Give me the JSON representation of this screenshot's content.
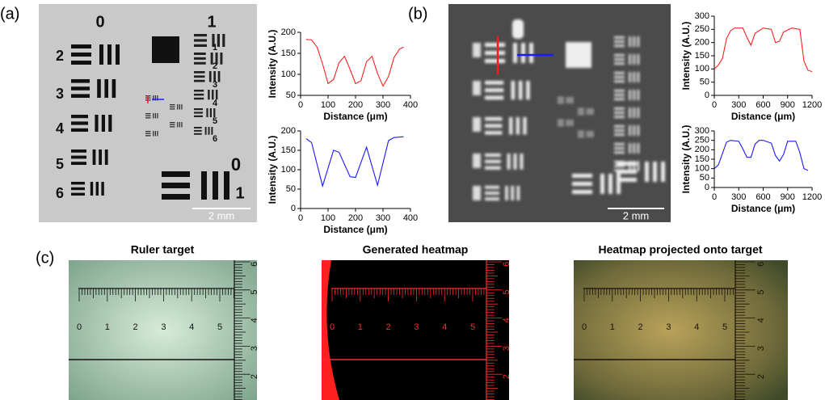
{
  "panel_labels": [
    "(a)",
    "(b)",
    "(c)"
  ],
  "scale_bar": "2 mm",
  "target_labels": [
    "0",
    "1",
    "2",
    "3",
    "4",
    "5",
    "6",
    "1",
    "2",
    "3",
    "4",
    "5",
    "6",
    "0",
    "1"
  ],
  "panel_c_titles": [
    "Ruler target",
    "Generated heatmap",
    "Heatmap projected onto target"
  ],
  "ruler": {
    "h_labels": [
      "0",
      "1",
      "2",
      "3",
      "4",
      "5"
    ],
    "v_labels": [
      "2",
      "3",
      "4",
      "5",
      "6"
    ]
  },
  "chart_data": [
    {
      "type": "line",
      "x_label": "Distance (μm)",
      "y_label": "Intensity (A.U.)",
      "x": [
        20,
        40,
        60,
        80,
        100,
        120,
        140,
        160,
        180,
        200,
        220,
        240,
        260,
        280,
        300,
        320,
        340,
        360,
        375
      ],
      "series": [
        {
          "color": "#ff2020",
          "values": [
            183,
            182,
            165,
            125,
            78,
            88,
            128,
            143,
            112,
            78,
            85,
            130,
            143,
            102,
            72,
            95,
            140,
            160,
            165
          ]
        }
      ],
      "xlim": [
        0,
        400
      ],
      "ylim": [
        50,
        200
      ],
      "xticks": [
        0,
        100,
        200,
        300,
        400
      ],
      "yticks": [
        50,
        100,
        150,
        200
      ]
    },
    {
      "type": "line",
      "x_label": "Distance (μm)",
      "y_label": "Intensity (A.U.)",
      "x": [
        20,
        40,
        80,
        120,
        140,
        180,
        200,
        240,
        280,
        320,
        340,
        375
      ],
      "series": [
        {
          "color": "#1a1aff",
          "values": [
            180,
            170,
            58,
            150,
            145,
            82,
            80,
            158,
            60,
            175,
            183,
            185
          ]
        }
      ],
      "xlim": [
        0,
        400
      ],
      "ylim": [
        0,
        200
      ],
      "xticks": [
        0,
        100,
        200,
        300,
        400
      ],
      "yticks": [
        0,
        50,
        100,
        150,
        200
      ]
    },
    {
      "type": "line",
      "x_label": "Distance (μm)",
      "y_label": "Intensity (A.U.)",
      "x": [
        0,
        50,
        100,
        150,
        200,
        250,
        350,
        400,
        450,
        500,
        600,
        700,
        750,
        800,
        850,
        950,
        1050,
        1100,
        1150,
        1200
      ],
      "series": [
        {
          "color": "#ff2020",
          "values": [
            100,
            115,
            140,
            215,
            245,
            255,
            255,
            220,
            190,
            235,
            255,
            250,
            200,
            205,
            240,
            255,
            250,
            130,
            95,
            90
          ]
        }
      ],
      "xlim": [
        0,
        1200
      ],
      "ylim": [
        0,
        300
      ],
      "xticks": [
        0,
        300,
        600,
        900,
        1200
      ],
      "yticks": [
        0,
        50,
        100,
        150,
        200,
        250,
        300
      ]
    },
    {
      "type": "line",
      "x_label": "Distance (μm)",
      "y_label": "Intensity (A.U.)",
      "x": [
        0,
        50,
        150,
        200,
        300,
        350,
        400,
        450,
        500,
        550,
        600,
        700,
        750,
        800,
        850,
        900,
        1000,
        1050,
        1100,
        1150
      ],
      "series": [
        {
          "color": "#1a1aff",
          "values": [
            100,
            120,
            240,
            250,
            245,
            205,
            160,
            160,
            230,
            250,
            250,
            235,
            170,
            140,
            175,
            245,
            245,
            185,
            100,
            90
          ]
        }
      ],
      "xlim": [
        0,
        1200
      ],
      "ylim": [
        0,
        300
      ],
      "xticks": [
        0,
        300,
        600,
        900,
        1200
      ],
      "yticks": [
        0,
        50,
        100,
        150,
        200,
        250,
        300
      ]
    }
  ]
}
